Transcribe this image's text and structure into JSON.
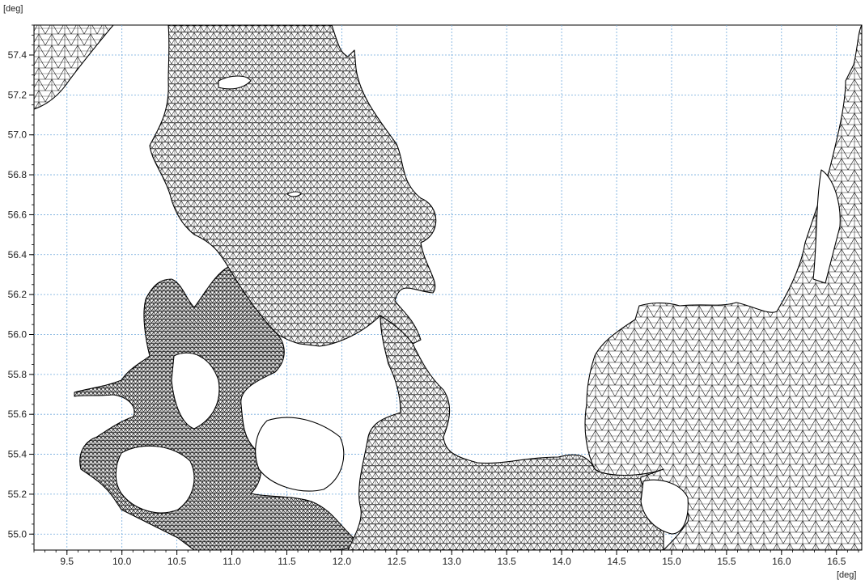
{
  "map": {
    "y_unit": "[deg]",
    "x_unit": "[deg]",
    "x_ticks": [
      "9.5",
      "10.0",
      "10.5",
      "11.0",
      "11.5",
      "12.0",
      "12.5",
      "13.0",
      "13.5",
      "14.0",
      "14.5",
      "15.0",
      "15.5",
      "16.0",
      "16.5"
    ],
    "y_ticks": [
      "57.4",
      "57.2",
      "57.0",
      "56.8",
      "56.6",
      "56.4",
      "56.2",
      "56.0",
      "55.8",
      "55.6",
      "55.4",
      "55.2",
      "55.0"
    ],
    "x_range": [
      9.2,
      16.73
    ],
    "y_range": [
      54.92,
      57.55
    ],
    "grid_color": "#6fa8dc",
    "mesh_color": "#000000",
    "mesh_style": "triangular",
    "grid": true
  }
}
